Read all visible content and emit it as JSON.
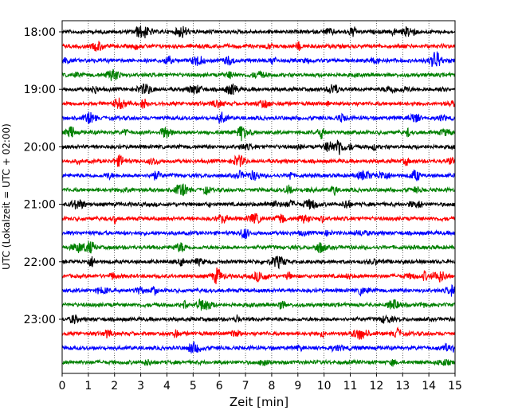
{
  "chart_data": {
    "type": "line",
    "chart_kind": "helicorder",
    "xlabel": "Zeit  [min]",
    "ylabel": "UTC (Lokalzeit = UTC + 02:00)",
    "xlim": [
      0,
      15
    ],
    "x_ticks": [
      0,
      1,
      2,
      3,
      4,
      5,
      6,
      7,
      8,
      9,
      10,
      11,
      12,
      13,
      14,
      15
    ],
    "x_grid": "dotted",
    "trace_minutes": 15,
    "start_time": "18:00",
    "trace_count": 24,
    "y_tick_labels": [
      "18:00",
      "19:00",
      "20:00",
      "21:00",
      "22:00",
      "23:00"
    ],
    "y_tick_trace_index": [
      0,
      4,
      8,
      12,
      16,
      20
    ],
    "trace_colors": [
      "#000000",
      "#ff0000",
      "#0000ff",
      "#008000"
    ],
    "frame_color": "#000000"
  }
}
